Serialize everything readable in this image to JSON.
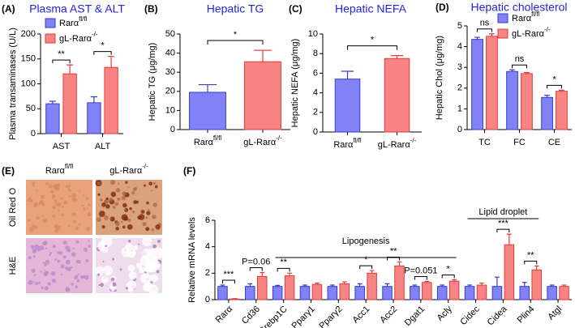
{
  "chart_data": [
    {
      "type": "grouped-bar",
      "panel": "(A)",
      "title": "Plasma AST & ALT",
      "ylabel": "Plasma transaminases (U/L)",
      "categories": [
        "AST",
        "ALT"
      ],
      "series": [
        {
          "name": "Rarα",
          "superscript": "fl/fl",
          "color": "#8282f7",
          "edge": "#3a3ad0",
          "values": [
            60,
            62
          ],
          "errors": [
            5,
            12
          ]
        },
        {
          "name": "gL-Rarα",
          "superscript": "-/-",
          "color": "#f98484",
          "edge": "#e03a3a",
          "values": [
            120,
            133
          ],
          "errors": [
            18,
            22
          ]
        }
      ],
      "ylim": [
        0,
        200
      ],
      "yticks": [
        0,
        50,
        100,
        150,
        200
      ],
      "annotations": [
        {
          "text": "**",
          "category": 0
        },
        {
          "text": "*",
          "category": 1
        }
      ]
    },
    {
      "type": "bar",
      "panel": "(B)",
      "title": "Hepatic TG",
      "ylabel": "Hepatic TG (μg/mg)",
      "categories": [
        "Rarα",
        "gL-Rarα"
      ],
      "category_superscripts": [
        "fl/fl",
        "-/-"
      ],
      "values": [
        19.5,
        35.5
      ],
      "errors": [
        4,
        6
      ],
      "colors": [
        "#8282f7",
        "#f98484"
      ],
      "edges": [
        "#3a3ad0",
        "#e03a3a"
      ],
      "ylim": [
        0,
        50
      ],
      "yticks": [
        0,
        10,
        20,
        30,
        40,
        50
      ],
      "annotations": [
        {
          "text": "*"
        }
      ]
    },
    {
      "type": "bar",
      "panel": "(C)",
      "title": "Hepatic NEFA",
      "ylabel": "Hepatic NEFA (μg/mg)",
      "categories": [
        "Rarα",
        "gL-Rarα"
      ],
      "category_superscripts": [
        "fl/fl",
        "-/-"
      ],
      "values": [
        5.4,
        7.5
      ],
      "errors": [
        0.8,
        0.3
      ],
      "colors": [
        "#8282f7",
        "#f98484"
      ],
      "edges": [
        "#3a3ad0",
        "#e03a3a"
      ],
      "ylim": [
        0,
        10
      ],
      "yticks": [
        0,
        2,
        4,
        6,
        8,
        10
      ],
      "annotations": [
        {
          "text": "*"
        }
      ]
    },
    {
      "type": "grouped-bar",
      "panel": "(D)",
      "title": "Hepatic cholesterol",
      "ylabel": "Hepatic Chol (μg/mg)",
      "categories": [
        "TC",
        "FC",
        "CE"
      ],
      "series": [
        {
          "name": "Rarα",
          "superscript": "fl/fl",
          "color": "#8282f7",
          "edge": "#3a3ad0",
          "values": [
            4.35,
            2.8,
            1.55
          ],
          "errors": [
            0.1,
            0.08,
            0.1
          ]
        },
        {
          "name": "gL-Rarα",
          "superscript": "-/-",
          "color": "#f98484",
          "edge": "#e03a3a",
          "values": [
            4.5,
            2.7,
            1.85
          ],
          "errors": [
            0.12,
            0.05,
            0.05
          ]
        }
      ],
      "ylim": [
        0,
        5
      ],
      "yticks": [
        0,
        1,
        2,
        3,
        4,
        5
      ],
      "annotations": [
        {
          "text": "ns",
          "category": 0
        },
        {
          "text": "ns",
          "category": 1
        },
        {
          "text": "*",
          "category": 2
        }
      ]
    },
    {
      "type": "grouped-bar",
      "panel": "(F)",
      "ylabel": "Relative mRNA levels",
      "categories": [
        "Rarα",
        "Cd36",
        "Srebp1C",
        "Pparγ1",
        "Pparγ2",
        "Acc1",
        "Acc2",
        "Dgat1",
        "Acly",
        "Cidec",
        "Cidea",
        "Plin4",
        "Atgl"
      ],
      "series": [
        {
          "color": "#8282f7",
          "edge": "#3a3ad0",
          "values": [
            1,
            1,
            1,
            1,
            1,
            1,
            1,
            1,
            1,
            1,
            1,
            1,
            1
          ],
          "errors": [
            0.1,
            0.2,
            0.08,
            0.1,
            0.1,
            0.2,
            0.2,
            0.1,
            0.1,
            0.1,
            0.7,
            0.3,
            0.1
          ]
        },
        {
          "color": "#f98484",
          "edge": "#e03a3a",
          "values": [
            0.05,
            1.75,
            1.8,
            1.15,
            1.2,
            2.0,
            2.55,
            1.3,
            1.4,
            1.1,
            4.15,
            2.25,
            1.0
          ],
          "errors": [
            0.03,
            0.3,
            0.2,
            0.1,
            0.15,
            0.2,
            0.3,
            0.08,
            0.1,
            0.15,
            0.8,
            0.3,
            0.1
          ]
        }
      ],
      "ylim": [
        0,
        6
      ],
      "yticks": [
        0,
        2,
        4,
        6
      ],
      "groups": [
        "Lipogenesis",
        "Lipid droplet"
      ],
      "annotations": [
        {
          "text": "***",
          "category": 0
        },
        {
          "text": "P=0.06",
          "category": 1
        },
        {
          "text": "**",
          "category": 2
        },
        {
          "text": "*",
          "category": 5
        },
        {
          "text": "**",
          "category": 6
        },
        {
          "text": "P=0.051",
          "category": 7
        },
        {
          "text": "*",
          "category": 8
        },
        {
          "text": "***",
          "category": 10
        },
        {
          "text": "**",
          "category": 11
        }
      ]
    }
  ],
  "image_panel": {
    "panel": "(E)",
    "columns": [
      {
        "name": "Rarα",
        "superscript": "fl/fl"
      },
      {
        "name": "gL-Rarα",
        "superscript": "-/-"
      }
    ],
    "rows": [
      "Oil Red O",
      "H&E"
    ]
  }
}
